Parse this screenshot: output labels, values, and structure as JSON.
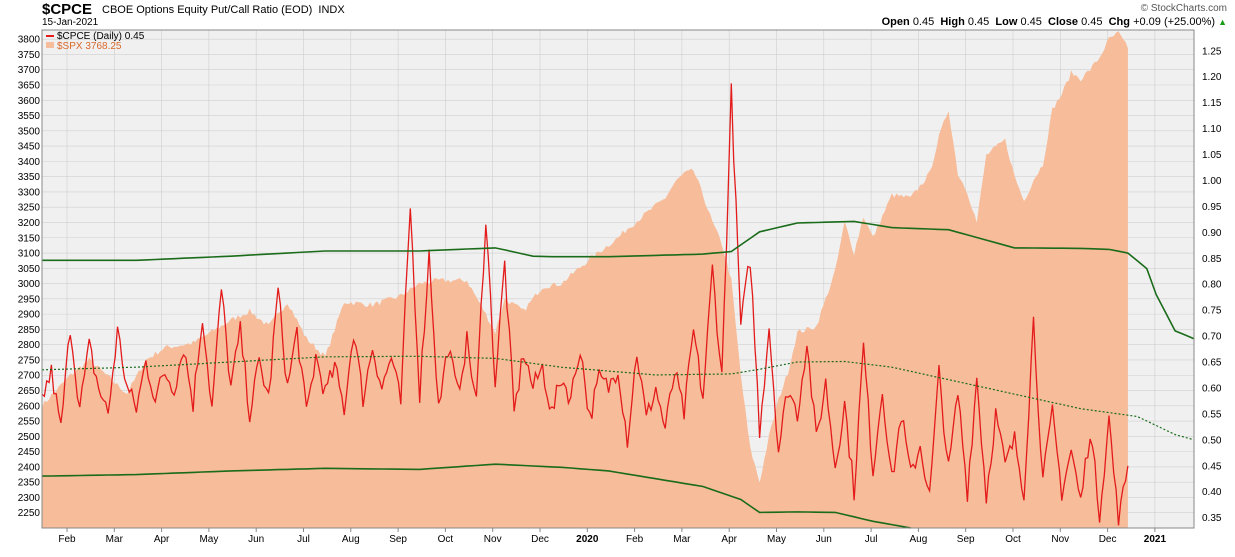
{
  "header": {
    "ticker": "$CPCE",
    "title": "CBOE Options Equity Put/Call Ratio (EOD)",
    "exchange": "INDX",
    "date": "15-Jan-2021",
    "brand": "© StockCharts.com",
    "open_label": "Open",
    "open": "0.45",
    "high_label": "High",
    "high": "0.45",
    "low_label": "Low",
    "low": "0.45",
    "close_label": "Close",
    "close": "0.45",
    "chg_label": "Chg",
    "chg": "+0.09 (+25.00%)",
    "chg_arrow": "▲"
  },
  "legend": {
    "cpce": "$CPCE (Daily) 0.45",
    "spx": "$SPX 3768.25"
  },
  "colors": {
    "cpce": "#e31b1b",
    "spx_fill": "#f7bc99",
    "band": "#1a6b1a",
    "plot_bg": "#f0f0f0",
    "grid": "#cfcfcf"
  },
  "chart_data": {
    "type": "line",
    "x_labels": [
      "Feb",
      "Mar",
      "Apr",
      "May",
      "Jun",
      "Jul",
      "Aug",
      "Sep",
      "Oct",
      "Nov",
      "Dec",
      "2020",
      "Feb",
      "Mar",
      "Apr",
      "May",
      "Jun",
      "Jul",
      "Aug",
      "Sep",
      "Oct",
      "Nov",
      "Dec",
      "2021"
    ],
    "left_axis": {
      "min": 2200,
      "max": 3830,
      "ticks": [
        2250,
        2300,
        2350,
        2400,
        2450,
        2500,
        2550,
        2600,
        2650,
        2700,
        2750,
        2800,
        2850,
        2900,
        2950,
        3000,
        3050,
        3100,
        3150,
        3200,
        3250,
        3300,
        3350,
        3400,
        3450,
        3500,
        3550,
        3600,
        3650,
        3700,
        3750,
        3800
      ]
    },
    "right_axis": {
      "min": 0.33,
      "max": 1.29,
      "ticks": [
        0.35,
        0.4,
        0.45,
        0.5,
        0.55,
        0.6,
        0.65,
        0.7,
        0.75,
        0.8,
        0.85,
        0.9,
        0.95,
        1.0,
        1.05,
        1.1,
        1.15,
        1.2,
        1.25
      ]
    },
    "spx_anchors": [
      [
        0,
        2600
      ],
      [
        3,
        2700
      ],
      [
        5,
        2750
      ],
      [
        9,
        2640
      ],
      [
        11,
        2750
      ],
      [
        13,
        2790
      ],
      [
        16,
        2805
      ],
      [
        20,
        2880
      ],
      [
        22,
        2910
      ],
      [
        24,
        2860
      ],
      [
        26,
        2940
      ],
      [
        28,
        2820
      ],
      [
        30,
        2760
      ],
      [
        32,
        2940
      ],
      [
        35,
        2930
      ],
      [
        38,
        2960
      ],
      [
        40,
        3000
      ],
      [
        42,
        3010
      ],
      [
        45,
        3010
      ],
      [
        47,
        2900
      ],
      [
        48,
        2840
      ],
      [
        49,
        2950
      ],
      [
        51,
        2910
      ],
      [
        53,
        2990
      ],
      [
        55,
        3000
      ],
      [
        58,
        3080
      ],
      [
        61,
        3150
      ],
      [
        62,
        3180
      ],
      [
        64,
        3230
      ],
      [
        66,
        3280
      ],
      [
        67,
        3330
      ],
      [
        68,
        3360
      ],
      [
        69,
        3370
      ],
      [
        70,
        3290
      ],
      [
        71,
        3200
      ],
      [
        72,
        3130
      ],
      [
        73,
        3010
      ],
      [
        74,
        2700
      ],
      [
        75,
        2460
      ],
      [
        76,
        2350
      ],
      [
        77,
        2500
      ],
      [
        78,
        2620
      ],
      [
        79,
        2710
      ],
      [
        80,
        2840
      ],
      [
        82,
        2860
      ],
      [
        83,
        2950
      ],
      [
        84,
        3040
      ],
      [
        85,
        3200
      ],
      [
        86,
        3100
      ],
      [
        87,
        3220
      ],
      [
        88,
        3150
      ],
      [
        90,
        3290
      ],
      [
        92,
        3280
      ],
      [
        94,
        3360
      ],
      [
        95,
        3480
      ],
      [
        96,
        3570
      ],
      [
        97,
        3360
      ],
      [
        98,
        3300
      ],
      [
        99,
        3200
      ],
      [
        100,
        3420
      ],
      [
        102,
        3470
      ],
      [
        103,
        3350
      ],
      [
        104,
        3270
      ],
      [
        105,
        3340
      ],
      [
        106,
        3390
      ],
      [
        107,
        3570
      ],
      [
        108,
        3620
      ],
      [
        109,
        3690
      ],
      [
        110,
        3670
      ],
      [
        111,
        3700
      ],
      [
        112,
        3740
      ],
      [
        113,
        3800
      ],
      [
        114,
        3820
      ],
      [
        115,
        3770
      ]
    ],
    "cpce_anchors": [
      [
        0,
        0.58
      ],
      [
        1,
        0.63
      ],
      [
        2,
        0.52
      ],
      [
        3,
        0.72
      ],
      [
        4,
        0.56
      ],
      [
        5,
        0.68
      ],
      [
        6,
        0.6
      ],
      [
        7,
        0.55
      ],
      [
        8,
        0.71
      ],
      [
        9,
        0.6
      ],
      [
        10,
        0.56
      ],
      [
        11,
        0.65
      ],
      [
        12,
        0.58
      ],
      [
        13,
        0.63
      ],
      [
        14,
        0.6
      ],
      [
        15,
        0.68
      ],
      [
        16,
        0.57
      ],
      [
        17,
        0.74
      ],
      [
        18,
        0.56
      ],
      [
        19,
        0.79
      ],
      [
        20,
        0.6
      ],
      [
        21,
        0.71
      ],
      [
        22,
        0.55
      ],
      [
        23,
        0.65
      ],
      [
        24,
        0.58
      ],
      [
        25,
        0.79
      ],
      [
        26,
        0.6
      ],
      [
        27,
        0.71
      ],
      [
        28,
        0.55
      ],
      [
        29,
        0.66
      ],
      [
        30,
        0.59
      ],
      [
        31,
        0.64
      ],
      [
        32,
        0.56
      ],
      [
        33,
        0.71
      ],
      [
        34,
        0.58
      ],
      [
        35,
        0.68
      ],
      [
        36,
        0.6
      ],
      [
        37,
        0.66
      ],
      [
        38,
        0.57
      ],
      [
        39,
        0.95
      ],
      [
        40,
        0.59
      ],
      [
        41,
        0.86
      ],
      [
        42,
        0.56
      ],
      [
        43,
        0.68
      ],
      [
        44,
        0.59
      ],
      [
        45,
        0.69
      ],
      [
        46,
        0.57
      ],
      [
        47,
        0.93
      ],
      [
        48,
        0.61
      ],
      [
        49,
        0.84
      ],
      [
        50,
        0.55
      ],
      [
        51,
        0.67
      ],
      [
        52,
        0.6
      ],
      [
        53,
        0.64
      ],
      [
        54,
        0.55
      ],
      [
        55,
        0.62
      ],
      [
        56,
        0.58
      ],
      [
        57,
        0.68
      ],
      [
        58,
        0.54
      ],
      [
        59,
        0.62
      ],
      [
        60,
        0.6
      ],
      [
        61,
        0.64
      ],
      [
        62,
        0.5
      ],
      [
        63,
        0.67
      ],
      [
        64,
        0.54
      ],
      [
        65,
        0.6
      ],
      [
        66,
        0.52
      ],
      [
        67,
        0.63
      ],
      [
        68,
        0.55
      ],
      [
        69,
        0.71
      ],
      [
        70,
        0.58
      ],
      [
        71,
        0.83
      ],
      [
        72,
        0.62
      ],
      [
        73,
        1.17
      ],
      [
        74,
        0.72
      ],
      [
        75,
        0.85
      ],
      [
        76,
        0.52
      ],
      [
        77,
        0.72
      ],
      [
        78,
        0.48
      ],
      [
        79,
        0.6
      ],
      [
        80,
        0.55
      ],
      [
        81,
        0.69
      ],
      [
        82,
        0.5
      ],
      [
        83,
        0.61
      ],
      [
        84,
        0.45
      ],
      [
        85,
        0.57
      ],
      [
        86,
        0.4
      ],
      [
        87,
        0.68
      ],
      [
        88,
        0.44
      ],
      [
        89,
        0.6
      ],
      [
        90,
        0.42
      ],
      [
        91,
        0.55
      ],
      [
        92,
        0.43
      ],
      [
        93,
        0.49
      ],
      [
        94,
        0.39
      ],
      [
        95,
        0.63
      ],
      [
        96,
        0.44
      ],
      [
        97,
        0.59
      ],
      [
        98,
        0.4
      ],
      [
        99,
        0.62
      ],
      [
        100,
        0.39
      ],
      [
        101,
        0.55
      ],
      [
        102,
        0.45
      ],
      [
        103,
        0.5
      ],
      [
        104,
        0.4
      ],
      [
        105,
        0.73
      ],
      [
        106,
        0.42
      ],
      [
        107,
        0.55
      ],
      [
        108,
        0.4
      ],
      [
        109,
        0.48
      ],
      [
        110,
        0.38
      ],
      [
        111,
        0.52
      ],
      [
        112,
        0.36
      ],
      [
        113,
        0.54
      ],
      [
        114,
        0.34
      ],
      [
        115,
        0.45
      ]
    ],
    "upper_band": [
      [
        0,
        0.846
      ],
      [
        10,
        0.846
      ],
      [
        20,
        0.854
      ],
      [
        30,
        0.864
      ],
      [
        40,
        0.864
      ],
      [
        48,
        0.87
      ],
      [
        52,
        0.854
      ],
      [
        54,
        0.853
      ],
      [
        60,
        0.853
      ],
      [
        70,
        0.858
      ],
      [
        73,
        0.863
      ],
      [
        76,
        0.901
      ],
      [
        80,
        0.918
      ],
      [
        86,
        0.921
      ],
      [
        90,
        0.909
      ],
      [
        96,
        0.905
      ],
      [
        103,
        0.87
      ],
      [
        110,
        0.869
      ],
      [
        113,
        0.867
      ],
      [
        115,
        0.86
      ],
      [
        117,
        0.83
      ],
      [
        118,
        0.78
      ],
      [
        120,
        0.71
      ],
      [
        122,
        0.695
      ]
    ],
    "middle_band": [
      [
        0,
        0.635
      ],
      [
        10,
        0.64
      ],
      [
        20,
        0.65
      ],
      [
        30,
        0.66
      ],
      [
        40,
        0.661
      ],
      [
        48,
        0.657
      ],
      [
        55,
        0.64
      ],
      [
        65,
        0.625
      ],
      [
        73,
        0.627
      ],
      [
        76,
        0.636
      ],
      [
        80,
        0.65
      ],
      [
        85,
        0.651
      ],
      [
        90,
        0.64
      ],
      [
        100,
        0.6
      ],
      [
        110,
        0.56
      ],
      [
        116,
        0.545
      ],
      [
        120,
        0.51
      ],
      [
        122,
        0.5
      ]
    ],
    "lower_band": [
      [
        0,
        0.43
      ],
      [
        10,
        0.433
      ],
      [
        20,
        0.44
      ],
      [
        30,
        0.445
      ],
      [
        40,
        0.443
      ],
      [
        48,
        0.453
      ],
      [
        55,
        0.447
      ],
      [
        60,
        0.44
      ],
      [
        70,
        0.41
      ],
      [
        74,
        0.385
      ],
      [
        76,
        0.36
      ],
      [
        80,
        0.361
      ],
      [
        84,
        0.36
      ],
      [
        88,
        0.343
      ],
      [
        92,
        0.33
      ]
    ]
  }
}
